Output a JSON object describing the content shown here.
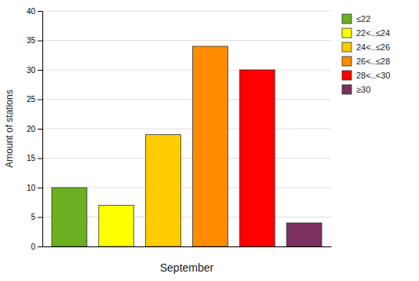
{
  "chart_data": {
    "type": "bar",
    "xlabel": "September",
    "ylabel": "Amount of stations",
    "categories": [
      "≤22",
      "22<..≤24",
      "24<..≤26",
      "26<..≤28",
      "28<..<30",
      "≥30"
    ],
    "values": [
      10,
      7,
      19,
      34,
      30,
      4
    ],
    "colors": [
      "#6ab020",
      "#ffff00",
      "#ffcc00",
      "#ff8c00",
      "#ff0000",
      "#7b3060"
    ],
    "ylim": [
      0,
      40
    ],
    "yticks": [
      0,
      5,
      10,
      15,
      20,
      25,
      30,
      35,
      40
    ],
    "grid": true,
    "legend": "upper right",
    "tick_labels": "y"
  }
}
